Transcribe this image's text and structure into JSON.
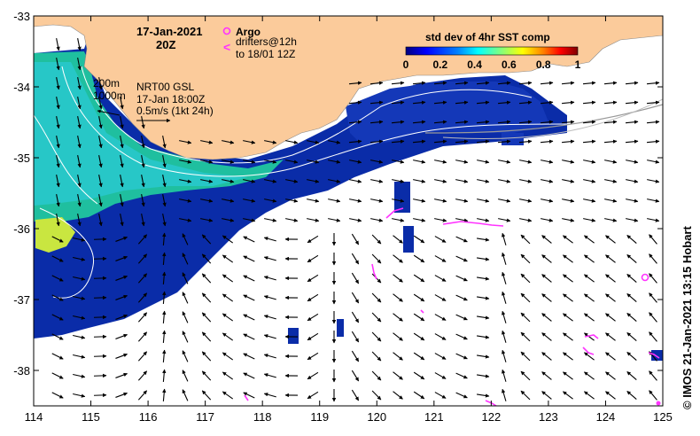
{
  "map": {
    "date_label": "17-Jan-2021",
    "time_label": "20Z",
    "legend": {
      "argo_label": "Argo",
      "drifters_label_line1": "drifters@12h",
      "drifters_label_line2": "to 18/01 12Z",
      "argo_color": "#ff33ff",
      "drifter_color": "#ff33ff"
    },
    "contours": {
      "label_200": "200m",
      "label_1000": "1000m"
    },
    "product": {
      "line1": "NRT00 GSL",
      "line2": "17-Jan 18:00Z",
      "scale_label": "0.5m/s (1kt 24h)"
    },
    "colorbar": {
      "title": "std dev of 4hr SST comp",
      "tick_labels": [
        "0",
        "0.2",
        "0.4",
        "0.6",
        "0.8",
        "1"
      ],
      "range": [
        0,
        1
      ],
      "colors": [
        "#00007f",
        "#0000ff",
        "#0080ff",
        "#00ffff",
        "#80ff80",
        "#ffff00",
        "#ff8000",
        "#ff0000",
        "#7f0000"
      ]
    },
    "axes": {
      "lon_ticks": [
        "114",
        "115",
        "116",
        "117",
        "118",
        "119",
        "120",
        "121",
        "122",
        "123",
        "124",
        "125"
      ],
      "lat_ticks": [
        "-33",
        "-34",
        "-35",
        "-36",
        "-37",
        "-38"
      ],
      "lon_range": [
        114,
        125
      ],
      "lat_range": [
        -33,
        -38.5
      ]
    },
    "land_color": "#fbcb9b",
    "credit": "© IMOS 21-Jan-2021 13:15 Hobart"
  }
}
